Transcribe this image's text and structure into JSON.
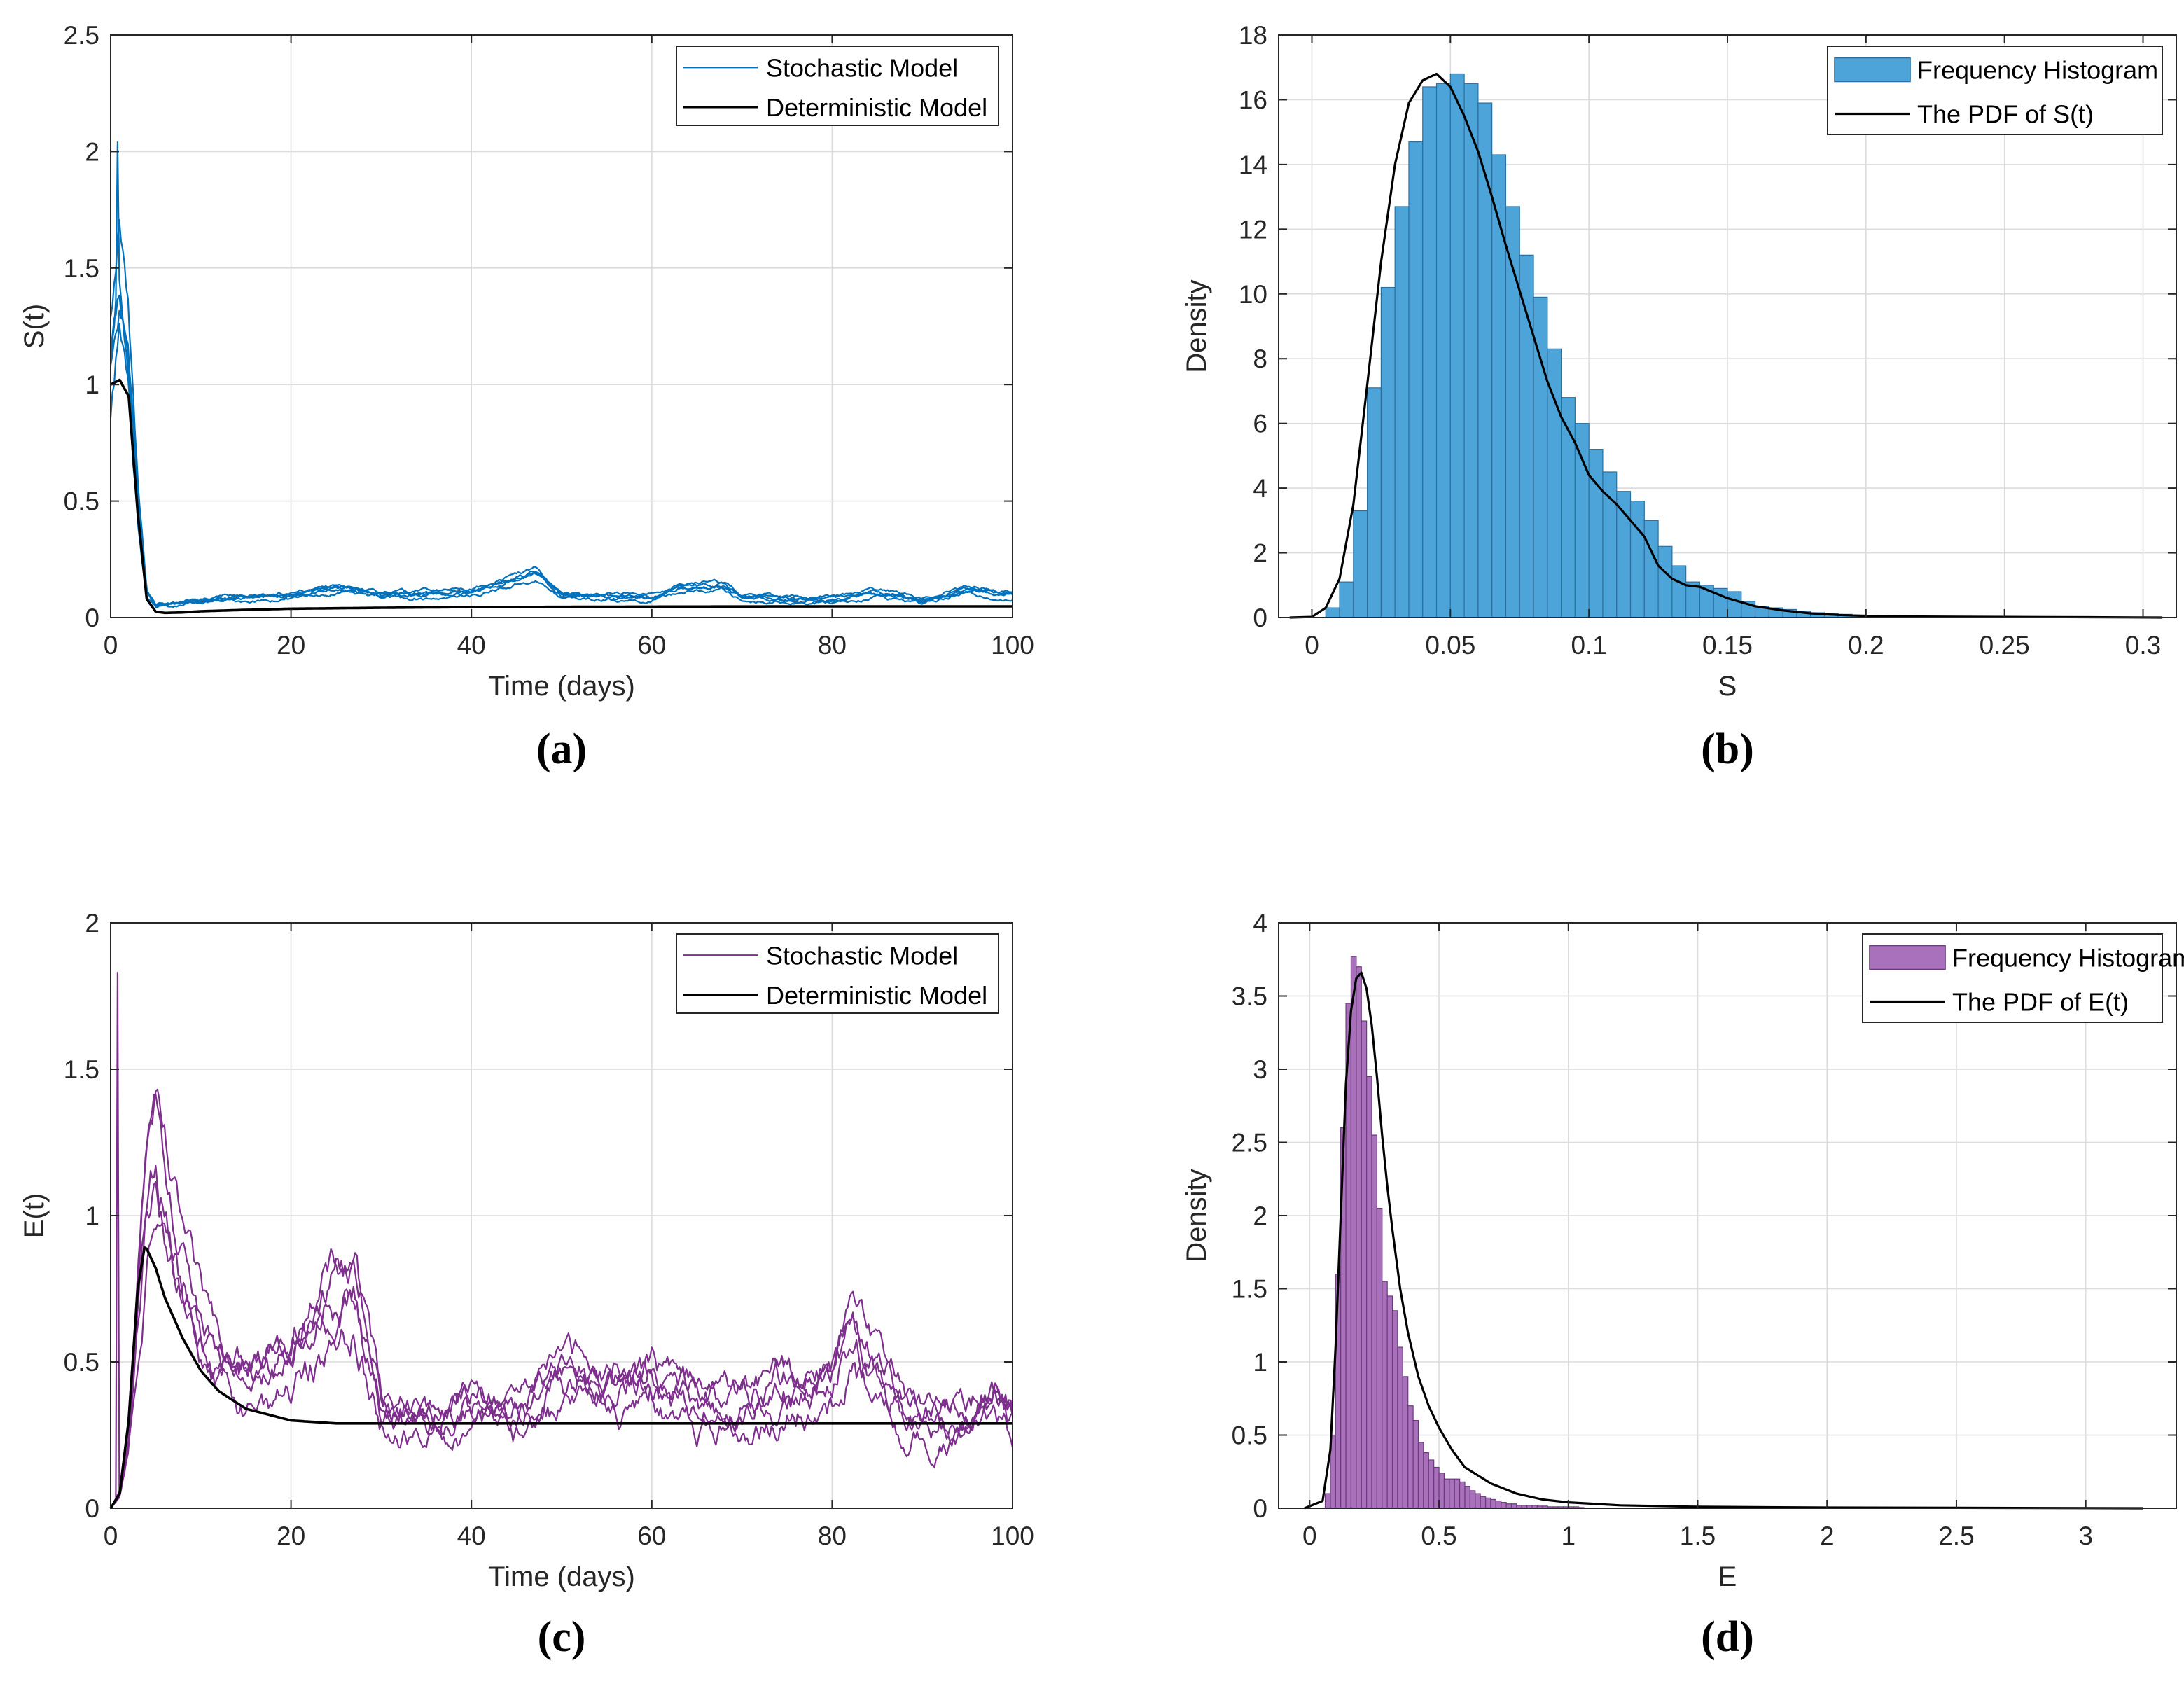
{
  "figure": {
    "panel_count": 4
  },
  "colors": {
    "blue": "#0072BD",
    "blue_fill": "#4DA4D9",
    "purple": "#7E2F8E",
    "purple_fill": "#A970BB",
    "black": "#000000",
    "grid": "#dcdcdc"
  },
  "chart_data": [
    {
      "panel": "(a)",
      "type": "line",
      "xlabel": "Time (days)",
      "ylabel": "S(t)",
      "xlim": [
        0,
        100
      ],
      "ylim": [
        0,
        2.5
      ],
      "xticks": [
        0,
        20,
        40,
        60,
        80,
        100
      ],
      "yticks": [
        0,
        0.5,
        1,
        1.5,
        2,
        2.5
      ],
      "xtick_labels": [
        "0",
        "20",
        "40",
        "60",
        "80",
        "100"
      ],
      "ytick_labels": [
        "0",
        "0.5",
        "1",
        "1.5",
        "2",
        "2.5"
      ],
      "grid": true,
      "legend_position": "top-right",
      "legend": [
        "Stochastic Model",
        "Deterministic Model"
      ],
      "series": [
        {
          "name": "Stochastic Model",
          "kind": "stochastic",
          "paths": 5,
          "color": "#0072BD",
          "x": [
            0,
            1,
            2,
            3,
            4,
            5,
            8,
            10,
            15,
            20,
            25,
            30,
            40,
            47,
            50,
            60,
            63,
            68,
            70,
            80,
            85,
            90,
            95,
            100
          ],
          "y": [
            1.0,
            1.35,
            1.0,
            0.45,
            0.1,
            0.05,
            0.06,
            0.07,
            0.08,
            0.09,
            0.12,
            0.09,
            0.1,
            0.18,
            0.09,
            0.08,
            0.12,
            0.13,
            0.08,
            0.07,
            0.1,
            0.07,
            0.11,
            0.09
          ],
          "amplitude": 0.03,
          "peak": 2.04
        },
        {
          "name": "Deterministic Model",
          "kind": "deterministic",
          "color": "#000000",
          "x": [
            0,
            1,
            2,
            3,
            4,
            5,
            6,
            8,
            10,
            15,
            20,
            30,
            40,
            60,
            80,
            100
          ],
          "y": [
            1.0,
            1.02,
            0.95,
            0.45,
            0.08,
            0.025,
            0.02,
            0.022,
            0.027,
            0.033,
            0.038,
            0.042,
            0.045,
            0.047,
            0.048,
            0.048
          ]
        }
      ]
    },
    {
      "panel": "(b)",
      "type": "histogram",
      "xlabel": "S",
      "ylabel": "Density",
      "xlim": [
        -0.012,
        0.312
      ],
      "ylim": [
        0,
        18
      ],
      "xticks": [
        0,
        0.05,
        0.1,
        0.15,
        0.2,
        0.25,
        0.3
      ],
      "yticks": [
        0,
        2,
        4,
        6,
        8,
        10,
        12,
        14,
        16,
        18
      ],
      "xtick_labels": [
        "0",
        "0.05",
        "0.1",
        "0.15",
        "0.2",
        "0.25",
        "0.3"
      ],
      "ytick_labels": [
        "0",
        "2",
        "4",
        "6",
        "8",
        "10",
        "12",
        "14",
        "16",
        "18"
      ],
      "grid": true,
      "legend_position": "top-right",
      "legend": [
        "Frequency Histogram",
        "The PDF of S(t)"
      ],
      "bin_start": 0.005,
      "bin_width": 0.005,
      "bin_values": [
        0.3,
        1.1,
        3.3,
        7.1,
        10.2,
        12.7,
        14.7,
        16.4,
        16.5,
        16.8,
        16.5,
        15.9,
        14.3,
        12.7,
        11.2,
        9.9,
        8.3,
        6.8,
        6.0,
        5.2,
        4.5,
        3.9,
        3.6,
        3.0,
        2.2,
        1.6,
        1.1,
        1.0,
        0.9,
        0.8,
        0.5,
        0.35,
        0.3,
        0.25,
        0.2,
        0.15,
        0.12,
        0.1,
        0.08,
        0.06,
        0.05,
        0.04,
        0.03,
        0.03,
        0.02,
        0.02,
        0.01,
        0.01,
        0.01,
        0.01
      ],
      "pdf": {
        "name": "The PDF of S(t)",
        "x": [
          -0.008,
          0.0,
          0.005,
          0.01,
          0.015,
          0.02,
          0.025,
          0.03,
          0.035,
          0.04,
          0.045,
          0.05,
          0.055,
          0.06,
          0.065,
          0.07,
          0.075,
          0.08,
          0.085,
          0.09,
          0.095,
          0.1,
          0.105,
          0.11,
          0.115,
          0.12,
          0.125,
          0.13,
          0.135,
          0.14,
          0.15,
          0.16,
          0.17,
          0.18,
          0.19,
          0.2,
          0.22,
          0.25,
          0.28,
          0.307
        ],
        "y": [
          0.0,
          0.02,
          0.3,
          1.2,
          3.5,
          7.2,
          11.0,
          14.0,
          15.9,
          16.6,
          16.8,
          16.4,
          15.5,
          14.4,
          13.0,
          11.5,
          10.1,
          8.7,
          7.3,
          6.2,
          5.4,
          4.4,
          3.9,
          3.5,
          3.0,
          2.5,
          1.6,
          1.2,
          1.0,
          0.95,
          0.6,
          0.35,
          0.22,
          0.13,
          0.08,
          0.05,
          0.03,
          0.02,
          0.01,
          0.0
        ]
      }
    },
    {
      "panel": "(c)",
      "type": "line",
      "xlabel": "Time (days)",
      "ylabel": "E(t)",
      "xlim": [
        0,
        100
      ],
      "ylim": [
        0,
        2
      ],
      "xticks": [
        0,
        20,
        40,
        60,
        80,
        100
      ],
      "yticks": [
        0,
        0.5,
        1,
        1.5,
        2
      ],
      "xtick_labels": [
        "0",
        "20",
        "40",
        "60",
        "80",
        "100"
      ],
      "ytick_labels": [
        "0",
        "0.5",
        "1",
        "1.5",
        "2"
      ],
      "grid": true,
      "legend_position": "top-right",
      "legend": [
        "Stochastic Model",
        "Deterministic Model"
      ],
      "series": [
        {
          "name": "Stochastic Model",
          "kind": "stochastic",
          "paths": 5,
          "color": "#7E2F8E",
          "x": [
            0,
            1,
            2,
            3,
            4,
            5,
            7,
            10,
            15,
            20,
            24,
            27,
            30,
            35,
            40,
            45,
            50,
            55,
            60,
            65,
            70,
            75,
            80,
            82,
            85,
            90,
            95,
            98,
            100
          ],
          "y": [
            0.0,
            0.05,
            0.25,
            0.7,
            1.1,
            1.2,
            0.9,
            0.6,
            0.45,
            0.5,
            0.7,
            0.75,
            0.35,
            0.3,
            0.35,
            0.3,
            0.45,
            0.4,
            0.45,
            0.35,
            0.35,
            0.4,
            0.45,
            0.6,
            0.45,
            0.3,
            0.3,
            0.4,
            0.3
          ],
          "amplitude": 0.12,
          "peak": 1.83
        },
        {
          "name": "Deterministic Model",
          "kind": "deterministic",
          "color": "#000000",
          "x": [
            0,
            1,
            2,
            3,
            3.8,
            5,
            6,
            8,
            10,
            12,
            15,
            20,
            25,
            30,
            40,
            60,
            80,
            100
          ],
          "y": [
            0.0,
            0.05,
            0.3,
            0.75,
            0.9,
            0.82,
            0.72,
            0.58,
            0.47,
            0.4,
            0.34,
            0.3,
            0.29,
            0.29,
            0.29,
            0.29,
            0.29,
            0.29
          ]
        }
      ]
    },
    {
      "panel": "(d)",
      "type": "histogram",
      "xlabel": "E",
      "ylabel": "Density",
      "xlim": [
        -0.12,
        3.35
      ],
      "ylim": [
        0,
        4
      ],
      "xticks": [
        0,
        0.5,
        1,
        1.5,
        2,
        2.5,
        3
      ],
      "yticks": [
        0,
        0.5,
        1,
        1.5,
        2,
        2.5,
        3,
        3.5,
        4
      ],
      "xtick_labels": [
        "0",
        "0.5",
        "1",
        "1.5",
        "2",
        "2.5",
        "3"
      ],
      "ytick_labels": [
        "0",
        "0.5",
        "1",
        "1.5",
        "2",
        "2.5",
        "3",
        "3.5",
        "4"
      ],
      "grid": true,
      "legend_position": "top-right",
      "legend": [
        "Frequency Histogram",
        "The PDF of E(t)"
      ],
      "bin_start": 0.06,
      "bin_width": 0.02,
      "bin_values": [
        0.1,
        0.5,
        1.6,
        2.6,
        3.45,
        3.77,
        3.7,
        3.33,
        2.95,
        2.55,
        2.05,
        1.55,
        1.45,
        1.35,
        1.1,
        0.9,
        0.7,
        0.6,
        0.45,
        0.38,
        0.33,
        0.28,
        0.24,
        0.2,
        0.2,
        0.2,
        0.18,
        0.15,
        0.12,
        0.1,
        0.08,
        0.07,
        0.06,
        0.05,
        0.04,
        0.03,
        0.03,
        0.02,
        0.02,
        0.02,
        0.02,
        0.015,
        0.015,
        0.01,
        0.01,
        0.01,
        0.01,
        0.01,
        0.01,
        0.005
      ],
      "pdf": {
        "name": "The PDF of E(t)",
        "x": [
          -0.02,
          0.05,
          0.08,
          0.1,
          0.12,
          0.14,
          0.16,
          0.18,
          0.2,
          0.22,
          0.24,
          0.26,
          0.28,
          0.3,
          0.32,
          0.35,
          0.38,
          0.42,
          0.46,
          0.5,
          0.55,
          0.6,
          0.7,
          0.8,
          0.9,
          1.0,
          1.2,
          1.5,
          2.0,
          2.5,
          3.0,
          3.22
        ],
        "y": [
          0.0,
          0.05,
          0.4,
          1.1,
          2.0,
          2.9,
          3.4,
          3.62,
          3.66,
          3.55,
          3.3,
          2.95,
          2.55,
          2.2,
          1.9,
          1.5,
          1.2,
          0.9,
          0.7,
          0.55,
          0.4,
          0.28,
          0.17,
          0.1,
          0.06,
          0.04,
          0.02,
          0.01,
          0.005,
          0.003,
          0.001,
          0.0
        ]
      }
    }
  ]
}
